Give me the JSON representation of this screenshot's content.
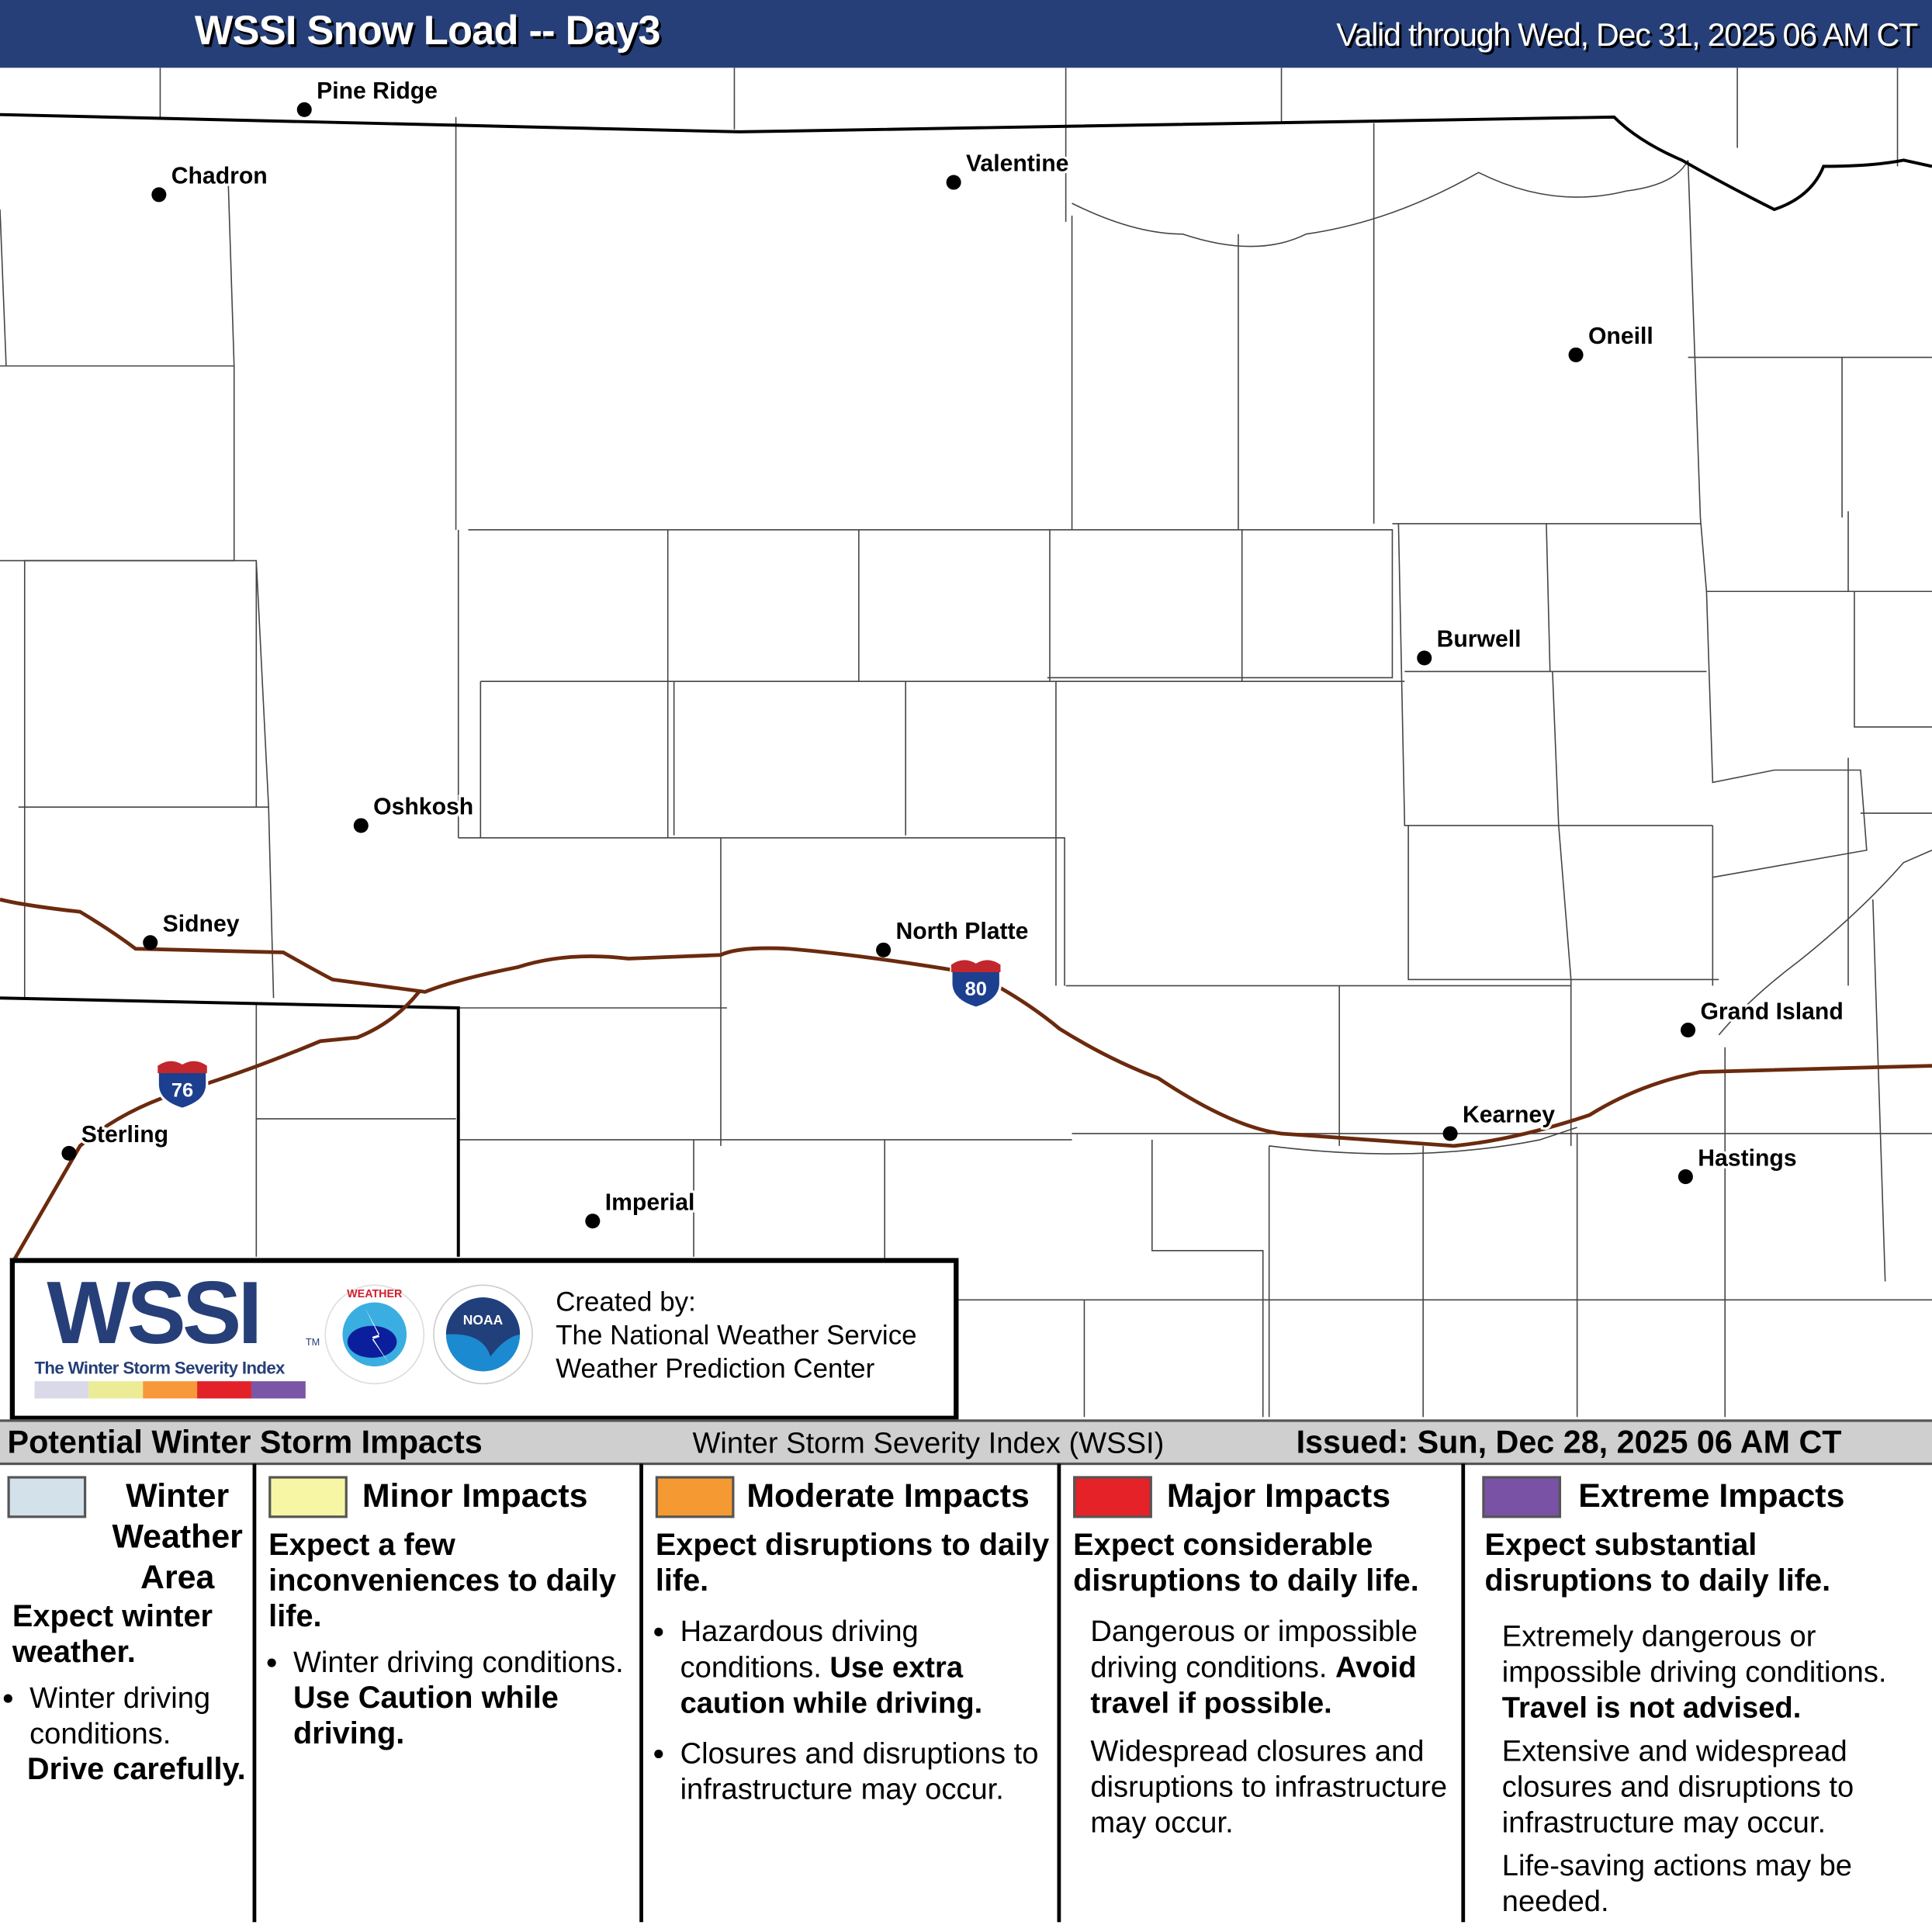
{
  "header": {
    "title": "WSSI Snow Load -- Day3",
    "valid": "Valid through Wed, Dec 31, 2025 06 AM CT"
  },
  "map": {
    "cities": [
      "Pine Ridge",
      "Chadron",
      "Valentine",
      "Oneill",
      "Burwell",
      "Oshkosh",
      "Sidney",
      "North Platte",
      "Grand Island",
      "Sterling",
      "Kearney",
      "Hastings",
      "Imperial"
    ],
    "shields": [
      {
        "route": "80",
        "color": "#1c3f8f"
      },
      {
        "route": "76",
        "color": "#1c3f8f"
      }
    ],
    "highway_color": "#6b2a0e"
  },
  "logo": {
    "wssi": "WSSI",
    "tm": "TM",
    "subtitle": "The Winter Storm Severity Index",
    "nws": "NATIONAL WEATHER SERVICE",
    "noaa": "NOAA",
    "created": [
      "Created by:",
      "The National Weather Service",
      "Weather Prediction Center"
    ],
    "bar_colors": [
      "#d9d9e8",
      "#ecec96",
      "#f7993a",
      "#e22129",
      "#7b55a6"
    ]
  },
  "legend": {
    "title": "Potential Winter Storm Impacts",
    "center": "Winter Storm Severity Index (WSSI)",
    "issued": "Issued: Sun, Dec 28, 2025 06 AM CT",
    "columns": [
      {
        "color": "#d3e1ea",
        "title": "Winter Weather Area",
        "sub": "Expect winter weather.",
        "bullets": [
          "Winter driving conditions."
        ],
        "bold": "Drive carefully."
      },
      {
        "color": "#f7f6a5",
        "title": "Minor Impacts",
        "sub": "Expect a few inconveniences to daily life.",
        "bullets": [
          "Winter driving conditions."
        ],
        "bold": "Use Caution while driving."
      },
      {
        "color": "#f59a33",
        "title": "Moderate Impacts",
        "sub": "Expect disruptions to daily life.",
        "b1": "Hazardous driving conditions.",
        "bold": "Use extra caution while driving.",
        "b2": "Closures and disruptions to infrastructure may occur."
      },
      {
        "color": "#e42227",
        "title": "Major Impacts",
        "sub": "Expect considerable disruptions to daily life.",
        "p1": "Dangerous or impossible driving conditions.",
        "bold": "Avoid travel if possible.",
        "p2": "Widespread closures and disruptions to infrastructure may occur."
      },
      {
        "color": "#7952a5",
        "title": "Extreme Impacts",
        "sub": "Expect substantial disruptions to daily life.",
        "p1": "Extremely dangerous or impossible driving conditions.",
        "bold": "Travel is not advised.",
        "p2": "Extensive and widespread closures and disruptions to infrastructure may occur.",
        "p3": "Life-saving actions may be needed."
      }
    ]
  }
}
